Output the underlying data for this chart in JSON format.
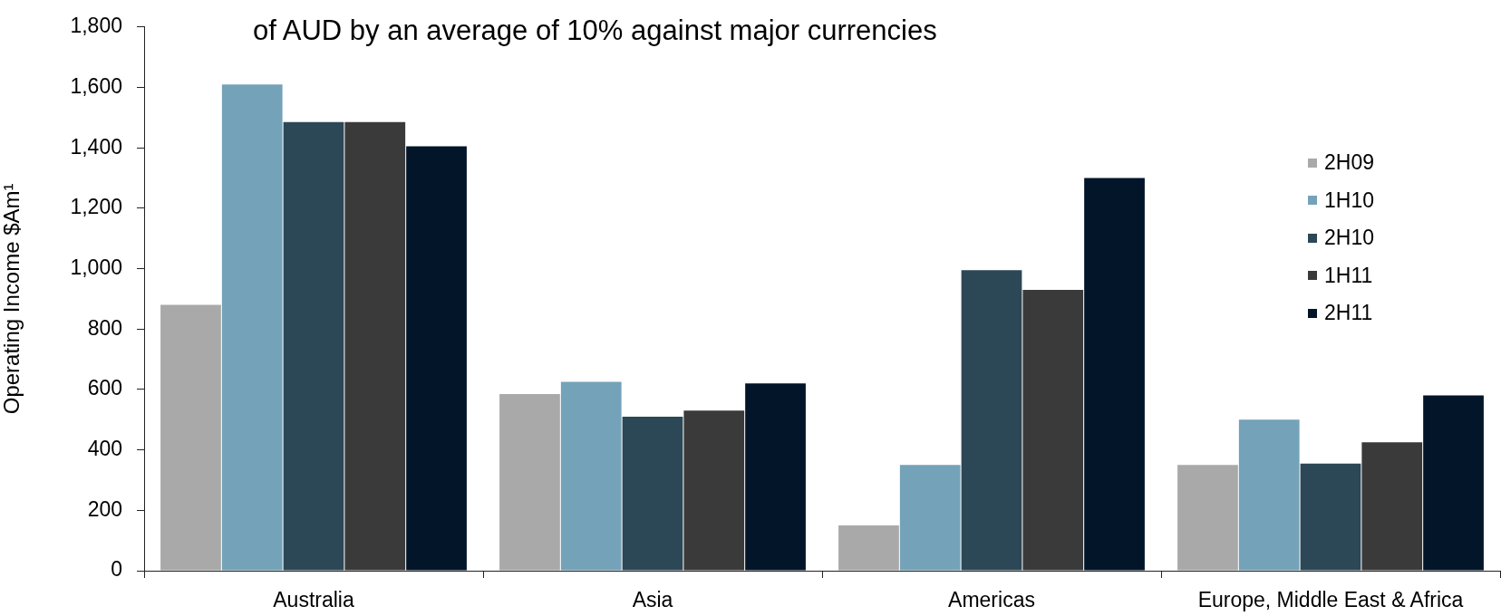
{
  "chart_data": {
    "type": "bar",
    "annotations": [
      "of AUD by an average of 10% against major currencies"
    ],
    "ylabel": "Operating Income $Am¹",
    "categories": [
      "Australia",
      "Asia",
      "Americas",
      "Europe, Middle East & Africa"
    ],
    "series": [
      {
        "name": "2H09",
        "color": "#a9a9a9",
        "values": [
          880,
          585,
          150,
          350
        ]
      },
      {
        "name": "1H10",
        "color": "#74a2b9",
        "values": [
          1610,
          625,
          350,
          500
        ]
      },
      {
        "name": "2H10",
        "color": "#2c4756",
        "values": [
          1485,
          510,
          995,
          355
        ]
      },
      {
        "name": "1H11",
        "color": "#3a3a3a",
        "values": [
          1485,
          530,
          930,
          425
        ]
      },
      {
        "name": "2H11",
        "color": "#021529",
        "values": [
          1405,
          620,
          1300,
          580
        ]
      }
    ],
    "ylim": [
      0,
      1800
    ],
    "yticks": [
      0,
      200,
      400,
      600,
      800,
      {
        "value": 1000,
        "label": "1,000"
      },
      {
        "value": 1200,
        "label": "1,200"
      },
      {
        "value": 1400,
        "label": "1,400"
      },
      {
        "value": 1600,
        "label": "1,600"
      },
      {
        "value": 1800,
        "label": "1,800"
      }
    ],
    "grid": false,
    "legend": "right"
  }
}
